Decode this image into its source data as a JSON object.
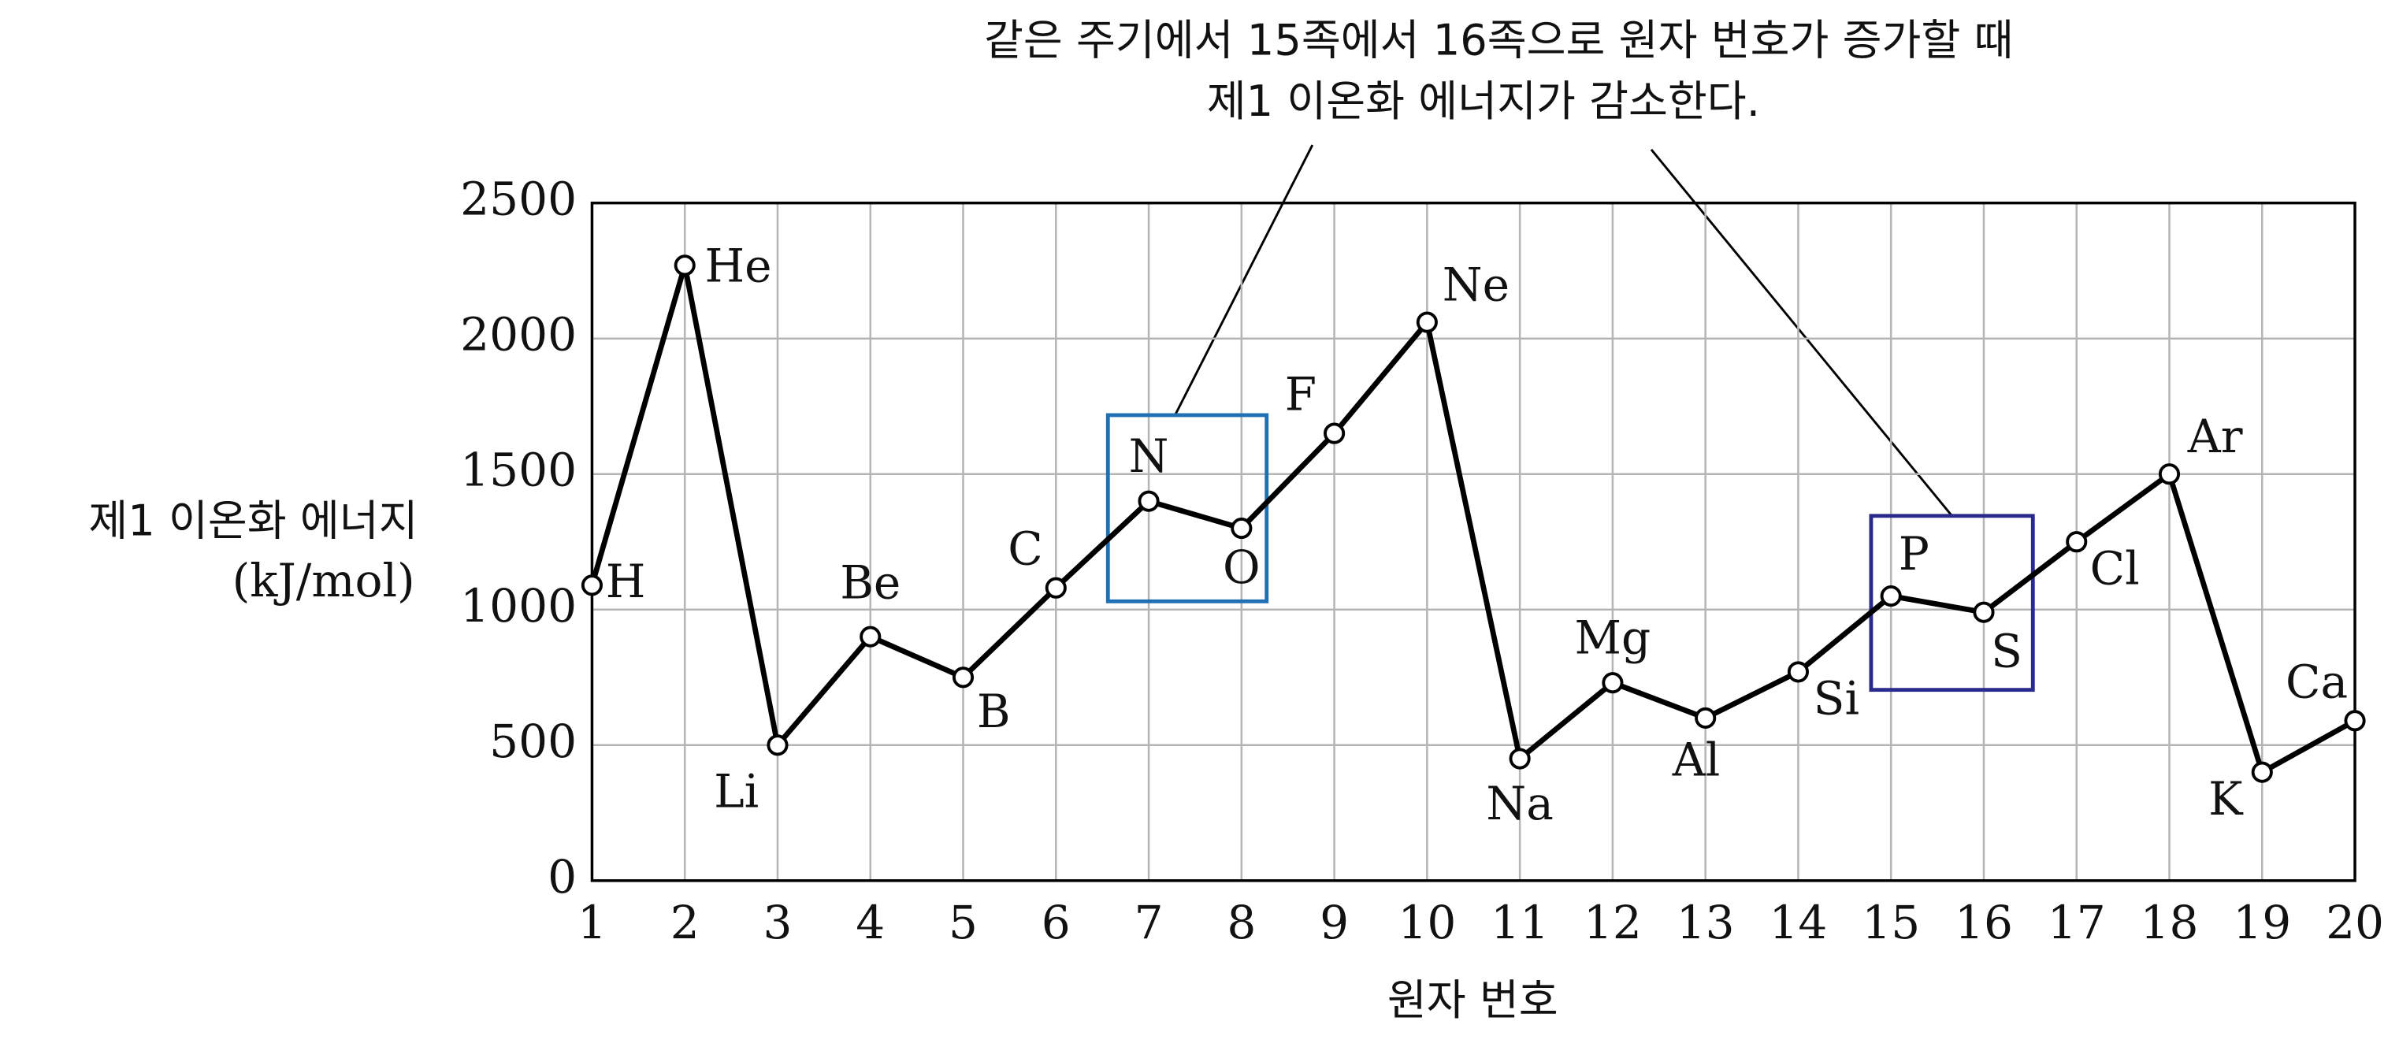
{
  "chart_data": {
    "type": "line",
    "annotation": [
      "같은 주기에서 15족에서 16족으로 원자 번호가 증가할 때",
      "제1 이온화 에너지가 감소한다."
    ],
    "ylabel": [
      "제1 이온화 에너지",
      "(kJ/mol)"
    ],
    "xlabel": "원자 번호",
    "x": [
      1,
      2,
      3,
      4,
      5,
      6,
      7,
      8,
      9,
      10,
      11,
      12,
      13,
      14,
      15,
      16,
      17,
      18,
      19,
      20
    ],
    "values": [
      1090,
      2270,
      500,
      900,
      750,
      1080,
      1400,
      1300,
      1650,
      2060,
      450,
      730,
      600,
      770,
      1050,
      990,
      1250,
      1500,
      400,
      590
    ],
    "point_labels": [
      "H",
      "He",
      "Li",
      "Be",
      "B",
      "C",
      "N",
      "O",
      "F",
      "Ne",
      "Na",
      "Mg",
      "Al",
      "Si",
      "P",
      "S",
      "Cl",
      "Ar",
      "K",
      "Ca"
    ],
    "color": "#000000",
    "xlim": [
      1,
      20
    ],
    "xticks": [
      1,
      2,
      3,
      4,
      5,
      6,
      7,
      8,
      9,
      10,
      11,
      12,
      13,
      14,
      15,
      16,
      17,
      18,
      19,
      20
    ],
    "ylim": [
      0,
      2500
    ],
    "yticks": [
      0,
      500,
      1000,
      1500,
      2000,
      2500
    ],
    "grid": true
  }
}
